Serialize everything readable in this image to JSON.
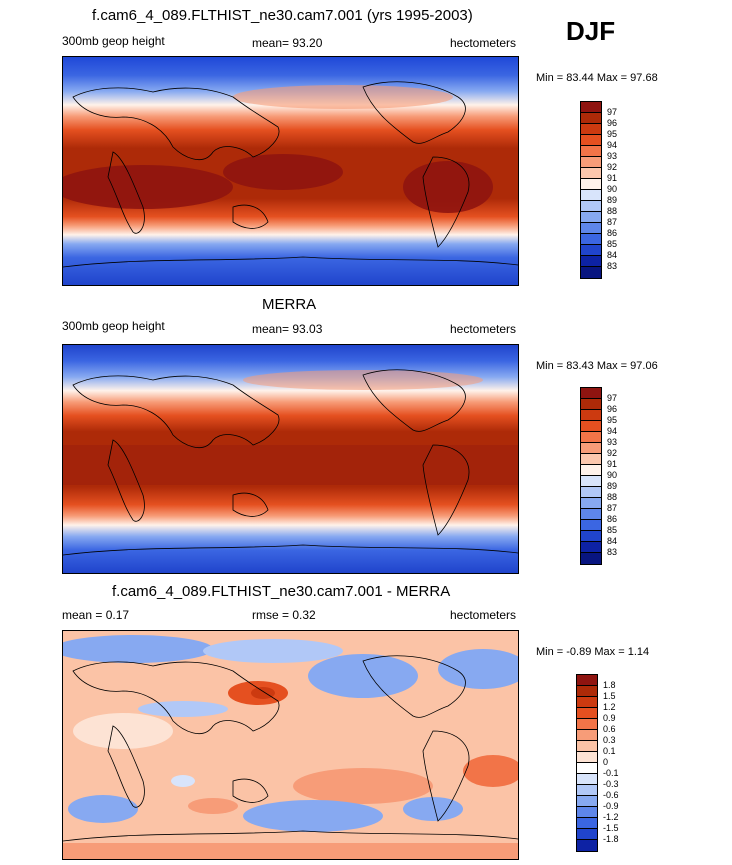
{
  "season": "DJF",
  "palette_full": [
    "#8b1010",
    "#a32a0a",
    "#c43c10",
    "#e05522",
    "#f07a48",
    "#f7a37c",
    "#fcd3bb",
    "#ffffff",
    "#d3e0fb",
    "#aac3f6",
    "#7ea2ef",
    "#577ee8",
    "#3560e0",
    "#1f3fc9",
    "#0b1c98",
    "#051070"
  ],
  "panels": [
    {
      "title": "f.cam6_4_089.FLTHIST_ne30.cam7.001 (yrs 1995-2003)",
      "left_label": "300mb geop height",
      "center_label": "mean=  93.20",
      "units": "hectometers",
      "minmax": "Min =  83.44 Max =  97.68",
      "colorbar": {
        "labels": [
          "97",
          "96",
          "95",
          "94",
          "93",
          "92",
          "91",
          "90",
          "89",
          "88",
          "87",
          "86",
          "85",
          "84",
          "83"
        ],
        "colors": [
          "#8f1410",
          "#ad2a08",
          "#cc3a10",
          "#e55020",
          "#f27448",
          "#f79c78",
          "#fcc7ad",
          "#fff2ea",
          "#d8e4fb",
          "#b1c8f7",
          "#87a9f1",
          "#5e86ea",
          "#3b66e2",
          "#2044cc",
          "#0d22a4",
          "#081580"
        ]
      }
    },
    {
      "title": "MERRA",
      "left_label": "300mb geop height",
      "center_label": "mean=  93.03",
      "units": "hectometers",
      "minmax": "Min =  83.43 Max =  97.06",
      "colorbar": {
        "labels": [
          "97",
          "96",
          "95",
          "94",
          "93",
          "92",
          "91",
          "90",
          "89",
          "88",
          "87",
          "86",
          "85",
          "84",
          "83"
        ],
        "colors": [
          "#8f1410",
          "#ad2a08",
          "#cc3a10",
          "#e55020",
          "#f27448",
          "#f79c78",
          "#fcc7ad",
          "#fff2ea",
          "#d8e4fb",
          "#b1c8f7",
          "#87a9f1",
          "#5e86ea",
          "#3b66e2",
          "#2044cc",
          "#0d22a4",
          "#081580"
        ]
      }
    },
    {
      "title": "f.cam6_4_089.FLTHIST_ne30.cam7.001 - MERRA",
      "left_label": "mean =   0.17",
      "center_label": "rmse =   0.32",
      "units": "hectometers",
      "minmax": "Min =  -0.89 Max =   1.14",
      "colorbar": {
        "labels": [
          "1.8",
          "1.5",
          "1.2",
          "0.9",
          "0.6",
          "0.3",
          "0.1",
          "0",
          "-0.1",
          "-0.3",
          "-0.6",
          "-0.9",
          "-1.2",
          "-1.5",
          "-1.8"
        ],
        "colors": [
          "#8f1410",
          "#ad2a08",
          "#cc3a10",
          "#e55020",
          "#f27448",
          "#f79c78",
          "#fbc3a6",
          "#fde3d4",
          "#ffffff",
          "#d8e4fb",
          "#b1c8f7",
          "#87a9f1",
          "#5e86ea",
          "#3b66e2",
          "#2044cc",
          "#0d22a4"
        ]
      }
    }
  ]
}
